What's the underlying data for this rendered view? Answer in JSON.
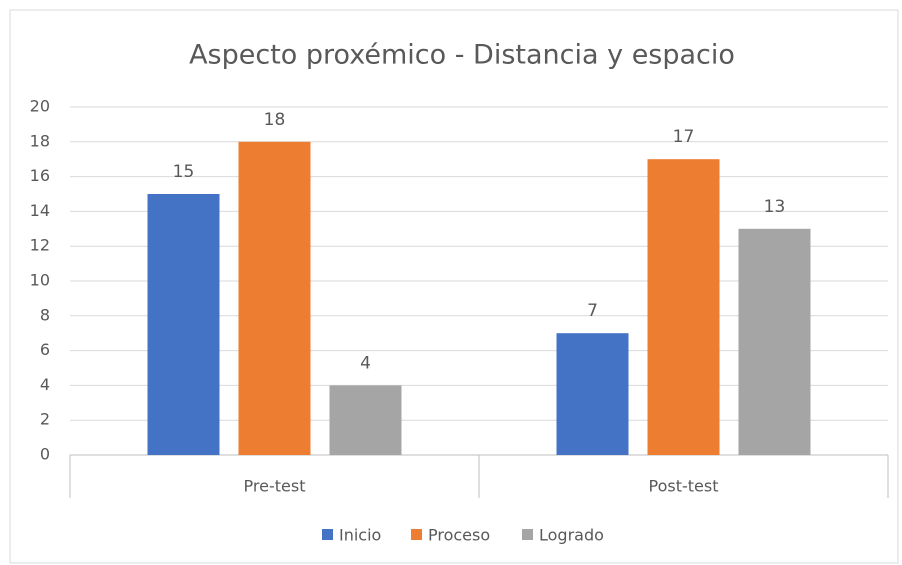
{
  "chart_data": {
    "type": "bar",
    "title": "Aspecto proxémico - Distancia y espacio",
    "categories": [
      "Pre-test",
      "Post-test"
    ],
    "series": [
      {
        "name": "Inicio",
        "color": "#4472c4",
        "values": [
          15,
          7
        ]
      },
      {
        "name": "Proceso",
        "color": "#ed7d31",
        "values": [
          18,
          17
        ]
      },
      {
        "name": "Logrado",
        "color": "#a5a5a5",
        "values": [
          4,
          13
        ]
      }
    ],
    "ylim": [
      0,
      20
    ],
    "yticks": [
      0,
      2,
      4,
      6,
      8,
      10,
      12,
      14,
      16,
      18,
      20
    ],
    "grid": true,
    "legend": "bottom"
  }
}
